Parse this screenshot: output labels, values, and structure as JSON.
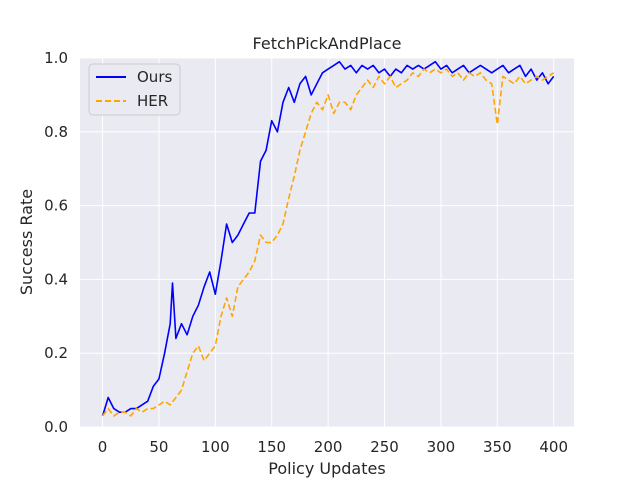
{
  "chart_data": {
    "type": "line",
    "title": "FetchPickAndPlace",
    "xlabel": "Policy Updates",
    "ylabel": "Success Rate",
    "xlim": [
      -20,
      418
    ],
    "ylim": [
      0,
      1.0
    ],
    "xticks": [
      0,
      50,
      100,
      150,
      200,
      250,
      300,
      350,
      400
    ],
    "yticks": [
      0.0,
      0.2,
      0.4,
      0.6,
      0.8,
      1.0
    ],
    "xtick_labels": [
      "0",
      "50",
      "100",
      "150",
      "200",
      "250",
      "300",
      "350",
      "400"
    ],
    "ytick_labels": [
      "0.0",
      "0.2",
      "0.4",
      "0.6",
      "0.8",
      "1.0"
    ],
    "grid": true,
    "background": "#eaeaf2",
    "legend_position": "top-left",
    "series": [
      {
        "name": "Ours",
        "color": "#0000ff",
        "style": "solid",
        "x": [
          0,
          5,
          10,
          15,
          20,
          25,
          30,
          35,
          40,
          45,
          50,
          55,
          60,
          62,
          65,
          70,
          75,
          80,
          85,
          90,
          95,
          100,
          105,
          110,
          115,
          120,
          125,
          130,
          135,
          140,
          145,
          150,
          155,
          160,
          165,
          170,
          175,
          180,
          185,
          190,
          195,
          200,
          205,
          210,
          215,
          220,
          225,
          230,
          235,
          240,
          245,
          250,
          255,
          260,
          265,
          270,
          275,
          280,
          285,
          290,
          295,
          300,
          305,
          310,
          315,
          320,
          325,
          330,
          335,
          340,
          345,
          350,
          355,
          360,
          365,
          370,
          375,
          380,
          385,
          390,
          395,
          400
        ],
        "y": [
          0.03,
          0.08,
          0.05,
          0.04,
          0.04,
          0.05,
          0.05,
          0.06,
          0.07,
          0.11,
          0.13,
          0.2,
          0.28,
          0.39,
          0.24,
          0.28,
          0.25,
          0.3,
          0.33,
          0.38,
          0.42,
          0.36,
          0.45,
          0.55,
          0.5,
          0.52,
          0.55,
          0.58,
          0.58,
          0.72,
          0.75,
          0.83,
          0.8,
          0.88,
          0.92,
          0.88,
          0.93,
          0.95,
          0.9,
          0.93,
          0.96,
          0.97,
          0.98,
          0.99,
          0.97,
          0.98,
          0.96,
          0.98,
          0.97,
          0.98,
          0.96,
          0.97,
          0.95,
          0.97,
          0.96,
          0.98,
          0.97,
          0.98,
          0.97,
          0.98,
          0.99,
          0.97,
          0.98,
          0.96,
          0.97,
          0.98,
          0.96,
          0.97,
          0.98,
          0.97,
          0.96,
          0.97,
          0.98,
          0.96,
          0.97,
          0.98,
          0.95,
          0.97,
          0.94,
          0.96,
          0.93,
          0.95
        ]
      },
      {
        "name": "HER",
        "color": "#ffa500",
        "style": "dashed",
        "x": [
          0,
          5,
          10,
          15,
          20,
          25,
          30,
          35,
          40,
          45,
          50,
          55,
          60,
          65,
          70,
          75,
          80,
          85,
          90,
          95,
          100,
          105,
          110,
          115,
          120,
          125,
          130,
          135,
          140,
          145,
          150,
          155,
          160,
          165,
          170,
          175,
          180,
          185,
          190,
          195,
          200,
          205,
          210,
          215,
          220,
          225,
          230,
          235,
          240,
          245,
          250,
          255,
          260,
          265,
          270,
          275,
          280,
          285,
          290,
          295,
          300,
          305,
          310,
          315,
          320,
          325,
          330,
          335,
          340,
          345,
          350,
          355,
          360,
          365,
          370,
          375,
          380,
          385,
          390,
          395,
          400
        ],
        "y": [
          0.03,
          0.05,
          0.03,
          0.04,
          0.04,
          0.03,
          0.05,
          0.04,
          0.05,
          0.05,
          0.06,
          0.07,
          0.06,
          0.08,
          0.1,
          0.15,
          0.2,
          0.22,
          0.18,
          0.2,
          0.22,
          0.3,
          0.35,
          0.3,
          0.38,
          0.4,
          0.42,
          0.45,
          0.52,
          0.5,
          0.5,
          0.52,
          0.55,
          0.62,
          0.68,
          0.75,
          0.8,
          0.85,
          0.88,
          0.86,
          0.9,
          0.85,
          0.88,
          0.88,
          0.86,
          0.9,
          0.92,
          0.94,
          0.92,
          0.95,
          0.93,
          0.95,
          0.92,
          0.93,
          0.94,
          0.96,
          0.95,
          0.97,
          0.96,
          0.97,
          0.96,
          0.97,
          0.95,
          0.96,
          0.94,
          0.96,
          0.95,
          0.96,
          0.94,
          0.93,
          0.82,
          0.95,
          0.94,
          0.93,
          0.95,
          0.93,
          0.94,
          0.95,
          0.94,
          0.95,
          0.96
        ]
      }
    ]
  }
}
